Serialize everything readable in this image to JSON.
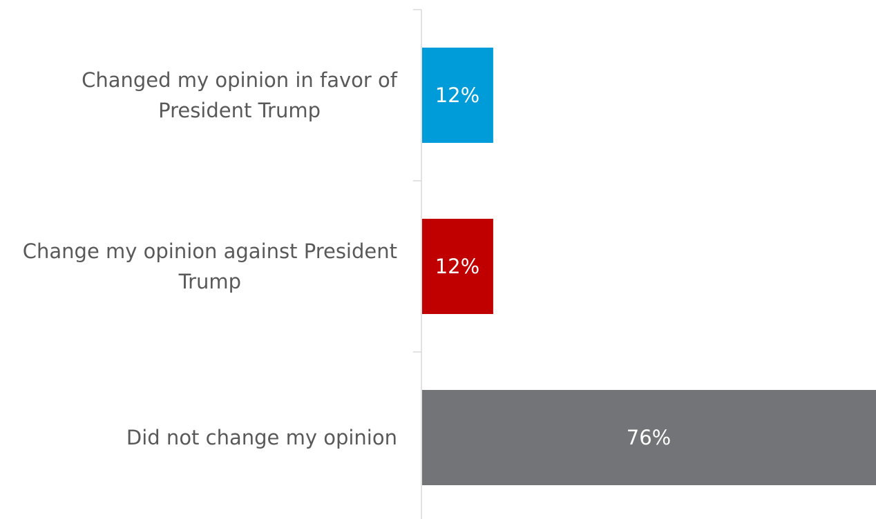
{
  "chart_data": {
    "type": "bar",
    "orientation": "horizontal",
    "categories": [
      "Changed my opinion in favor of President Trump",
      "Change my opinion against President Trump",
      "Did not change my opinion"
    ],
    "category_lines": [
      [
        "Changed my opinion in favor of",
        "President Trump"
      ],
      [
        "Change my opinion against President",
        "Trump"
      ],
      [
        "Did not change my opinion"
      ]
    ],
    "values": [
      12,
      12,
      76
    ],
    "data_labels": [
      "12%",
      "12%",
      "76%"
    ],
    "colors": [
      "#009bd9",
      "#c00000",
      "#737477"
    ],
    "xlim": [
      0,
      76
    ],
    "grid": false,
    "legend": "none"
  }
}
